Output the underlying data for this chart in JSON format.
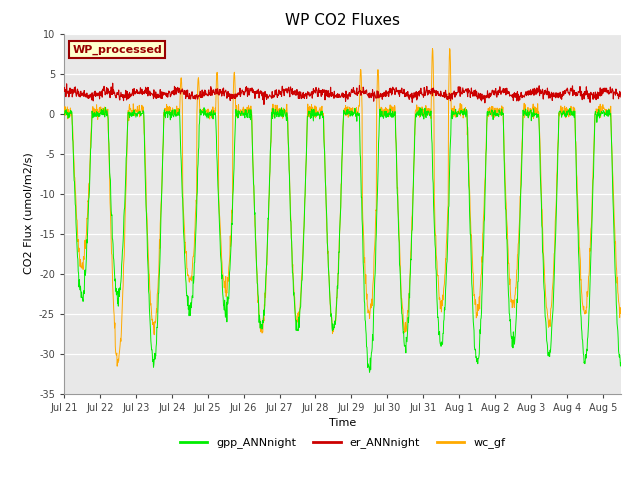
{
  "title": "WP CO2 Fluxes",
  "ylabel": "CO2 Flux (umol/m2/s)",
  "xlabel": "Time",
  "ylim": [
    -35,
    10
  ],
  "yticks": [
    -35,
    -30,
    -25,
    -20,
    -15,
    -10,
    -5,
    0,
    5,
    10
  ],
  "legend_labels": [
    "gpp_ANNnight",
    "er_ANNnight",
    "wc_gf"
  ],
  "legend_colors": [
    "#00ee00",
    "#cc0000",
    "#ffaa00"
  ],
  "watermark_text": "WP_processed",
  "watermark_bg": "#ffffcc",
  "watermark_fg": "#990000",
  "bg_color": "#ffffff",
  "plot_bg": "#e8e8e8",
  "n_days": 15.5,
  "n_points_per_day": 96,
  "xtick_labels": [
    "Jul 21",
    "Jul 22",
    "Jul 23",
    "Jul 24",
    "Jul 25",
    "Jul 26",
    "Jul 27",
    "Jul 28",
    "Jul 29",
    "Jul 30",
    "Jul 31",
    "Aug 1",
    "Aug 2",
    "Aug 3",
    "Aug 4",
    "Aug 5"
  ],
  "gpp_min_vals": [
    -23,
    -23,
    -31,
    -25,
    -25,
    -27,
    -27,
    -27,
    -32,
    -29,
    -29,
    -31,
    -29,
    -30,
    -31
  ],
  "er_base": 2.5,
  "wc_gf_min_vals": [
    -19,
    -31,
    -27,
    -21,
    -22,
    -27,
    -26,
    -27,
    -25,
    -27,
    -24,
    -25,
    -24,
    -26,
    -25
  ],
  "wc_gf_spike_day": [
    0,
    0,
    0,
    4.5,
    5.2,
    0,
    0,
    0,
    5.6,
    0,
    8.2,
    0,
    0,
    0,
    0
  ],
  "title_fontsize": 11,
  "axis_fontsize": 8,
  "tick_fontsize": 7,
  "legend_fontsize": 8
}
